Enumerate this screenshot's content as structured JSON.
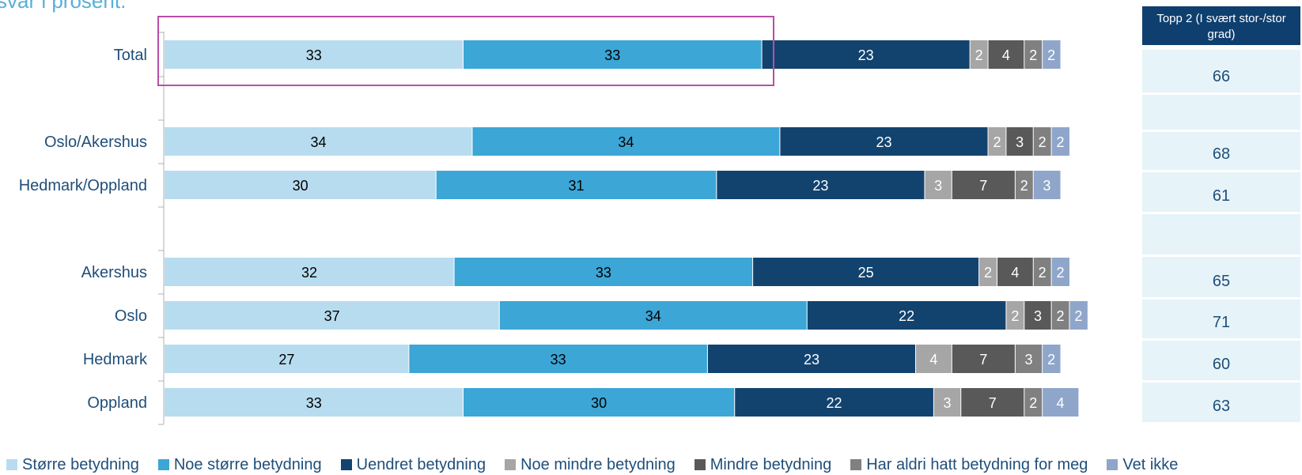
{
  "title_fragment": "svar i prosent.",
  "side_panel": {
    "header": "Topp 2 (I svært stor-/stor grad)",
    "values": [
      "66",
      "",
      "68",
      "61",
      "",
      "65",
      "71",
      "60",
      "63"
    ]
  },
  "colors": {
    "series": [
      "#b8dcef",
      "#3ca6d6",
      "#12436f",
      "#a6a6a6",
      "#595959",
      "#808080",
      "#8fa6ca"
    ],
    "highlight_box": "#b84fa5",
    "category_text": "#1f4e79"
  },
  "chart_data": {
    "type": "bar",
    "orientation": "horizontal",
    "stacked": true,
    "categories": [
      "Total",
      "Oslo/Akershus",
      "Hedmark/Oppland",
      "Akershus",
      "Oslo",
      "Hedmark",
      "Oppland"
    ],
    "series": [
      {
        "name": "Større betydning",
        "values": [
          33,
          34,
          30,
          32,
          37,
          27,
          33
        ]
      },
      {
        "name": "Noe større betydning",
        "values": [
          33,
          34,
          31,
          33,
          34,
          33,
          30
        ]
      },
      {
        "name": "Uendret betydning",
        "values": [
          23,
          23,
          23,
          25,
          22,
          23,
          22
        ]
      },
      {
        "name": "Noe mindre betydning",
        "values": [
          2,
          2,
          3,
          2,
          2,
          4,
          3
        ]
      },
      {
        "name": "Mindre betydning",
        "values": [
          4,
          3,
          7,
          4,
          3,
          7,
          7
        ]
      },
      {
        "name": "Har aldri hatt betydning for meg",
        "values": [
          2,
          2,
          2,
          2,
          2,
          3,
          2
        ]
      },
      {
        "name": "Vet ikke",
        "values": [
          2,
          2,
          3,
          2,
          2,
          2,
          4
        ]
      }
    ],
    "xlim": [
      0,
      100
    ],
    "legend": "bottom",
    "grid": false
  }
}
